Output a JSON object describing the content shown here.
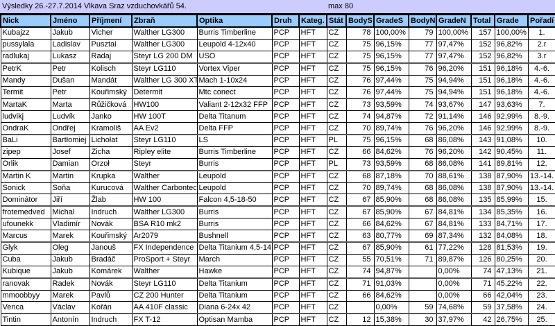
{
  "sheet": {
    "title": "Výsledky 26.-27.7.2014 Vlkava Sraz vzduchovkářů 54.",
    "max_note": "max 80",
    "header_color": "#99ccff",
    "title_color": "#ccccff",
    "columns": [
      "Nick",
      "Jméno",
      "Příjmení",
      "Zbraň",
      "Optika",
      "Druh",
      "Kateg.",
      "Stát",
      "BodyS",
      "GradeS",
      "BodyN",
      "GradeN",
      "Total",
      "Grade",
      "Pořadí"
    ],
    "rows": [
      [
        "Kubajzz",
        "Jakub",
        "Vicher",
        "Walther LG300",
        "Burris Timberline",
        "PCP",
        "HFT",
        "CZ",
        "78",
        "100,00%",
        "79",
        "100,00%",
        "157",
        "100,00%",
        "1."
      ],
      [
        "pussylala",
        "Ladislav",
        "Pusztai",
        "Walther LG300",
        "Leupold 4-12x40",
        "PCP",
        "HFT",
        "CZ",
        "75",
        "96,15%",
        "77",
        "97,47%",
        "152",
        "96,82%",
        "2.r"
      ],
      [
        "radlukaj",
        "Lukasz",
        "Radaj",
        "Steyr LG 200 DM",
        "USO",
        "PCP",
        "HFT",
        "CZ",
        "75",
        "96,15%",
        "77",
        "97,47%",
        "152",
        "96,82%",
        "3.r"
      ],
      [
        "PetrK",
        "Petr",
        "Kolisch",
        "Steyr LG110",
        "Vortex Viper",
        "PCP",
        "HFT",
        "CZ",
        "75",
        "96,15%",
        "76",
        "96,20%",
        "151",
        "96,18%",
        "4.-6."
      ],
      [
        "Mandy",
        "Dušan",
        "Mandát",
        "Walther LG 300 XT",
        "Mach 1-10x24",
        "PCP",
        "HFT",
        "CZ",
        "76",
        "97,44%",
        "75",
        "94,94%",
        "151",
        "96,18%",
        "4.-6."
      ],
      [
        "Termit",
        "Petr",
        "Kouřimský",
        "Determit",
        "Mtc conect",
        "PCP",
        "HFT",
        "CZ",
        "76",
        "97,44%",
        "75",
        "94,94%",
        "151",
        "96,18%",
        "4.-6."
      ],
      [
        "MartaK",
        "Marta",
        "Růžičková",
        "HW100",
        "Valiant 2-12x32 FFP",
        "PCP",
        "HFT",
        "CZ",
        "73",
        "93,59%",
        "74",
        "93,67%",
        "147",
        "93,63%",
        "7."
      ],
      [
        "ludvikj",
        "Ludvík",
        "Janko",
        "HW 100T",
        "Delta Titanum",
        "PCP",
        "HFT",
        "CZ",
        "74",
        "94,87%",
        "72",
        "91,14%",
        "146",
        "92,99%",
        "8.-9."
      ],
      [
        "OndraK",
        "Ondřej",
        "Kramoliš",
        "AA Ev2",
        "Delta FFP",
        "PCP",
        "HFT",
        "CZ",
        "70",
        "89,74%",
        "76",
        "96,20%",
        "146",
        "92,99%",
        "8.-9."
      ],
      [
        "BaLi",
        "Bartłomiej",
        "Lichołat",
        "Steyr LG110",
        "LS",
        "PCP",
        "HFT",
        "PL",
        "75",
        "96,15%",
        "68",
        "86,08%",
        "143",
        "91,08%",
        "10."
      ],
      [
        "zipep",
        "Josef",
        "Zicha",
        "Ripley elite",
        "Burris Timberline",
        "PCP",
        "HFT",
        "CZ",
        "66",
        "84,62%",
        "76",
        "96,20%",
        "142",
        "90,45%",
        "11."
      ],
      [
        "Orlik",
        "Damian",
        "Orzoł",
        "Steyr",
        "Burris",
        "PCP",
        "HFT",
        "PL",
        "73",
        "93,59%",
        "68",
        "86,08%",
        "141",
        "89,81%",
        "12."
      ],
      [
        "Martin K",
        "Martin",
        "Krupka",
        "Walther",
        "Leupold",
        "PCP",
        "HFT",
        "CZ",
        "68",
        "87,18%",
        "70",
        "88,61%",
        "138",
        "87,90%",
        "13.-14."
      ],
      [
        "Sonick",
        "Soňa",
        "Kurucová",
        "Walther Carbontec",
        "Leupold",
        "PCP",
        "HFT",
        "CZ",
        "70",
        "89,74%",
        "68",
        "86,08%",
        "138",
        "87,90%",
        "13.-14."
      ],
      [
        "Dominátor",
        "Jiří",
        "Žlab",
        "HW 100",
        "Falcon 4,5-18-50",
        "PCP",
        "HFT",
        "CZ",
        "67",
        "85,90%",
        "68",
        "86,08%",
        "135",
        "85,99%",
        "15."
      ],
      [
        "frotemedved",
        "Michal",
        "Indruch",
        "Walther LG300",
        "Burris",
        "PCP",
        "HFT",
        "CZ",
        "67",
        "85,90%",
        "67",
        "84,81%",
        "134",
        "85,35%",
        "16."
      ],
      [
        "ufounekk",
        "Vladimír",
        "Novák",
        "BSA R10 mk2",
        "Burris",
        "PCP",
        "HFT",
        "CZ",
        "66",
        "84,62%",
        "67",
        "84,81%",
        "133",
        "84,71%",
        "17."
      ],
      [
        "Marcus",
        "Marek",
        "Kouřimský",
        "Ar2079",
        "Bushnell",
        "PCP",
        "HFT",
        "CZ",
        "63",
        "80,77%",
        "69",
        "87,34%",
        "132",
        "84,08%",
        "18."
      ],
      [
        "Glyk",
        "Oleg",
        "Janouš",
        "FX Independence",
        "Delta Titanium 4,5-14",
        "PCP",
        "HFT",
        "CZ",
        "67",
        "85,90%",
        "61",
        "77,22%",
        "128",
        "81,53%",
        "19."
      ],
      [
        "Cuba",
        "Jakub",
        "Bradáč",
        "ProSport + Steyr",
        "March",
        "PCP",
        "HFT",
        "CZ",
        "55",
        "70,51%",
        "71",
        "89,87%",
        "126",
        "80,25%",
        "20."
      ],
      [
        "Kubique",
        "Jakub",
        "Komárek",
        "Walther",
        "Hawke",
        "PCP",
        "HFT",
        "CZ",
        "74",
        "94,87%",
        "",
        "0,00%",
        "74",
        "47,13%",
        "21."
      ],
      [
        "ranovak",
        "Radek",
        "Novák",
        "Steyr LG110",
        "Delta Titanium",
        "PCP",
        "HFT",
        "CZ",
        "71",
        "91,03%",
        "",
        "0,00%",
        "71",
        "45,22%",
        "22."
      ],
      [
        "mmoobbyy",
        "Marek",
        "Pavlů",
        "CZ 200 Hunter",
        "Delta Titanium",
        "PCP",
        "HFT",
        "CZ",
        "66",
        "84,62%",
        "",
        "0,00%",
        "66",
        "42,04%",
        "23."
      ],
      [
        "Venca",
        "Václav",
        "Kořán",
        "AA 410F classic",
        "Diana 6-24x 42",
        "PCP",
        "HFT",
        "CZ",
        "",
        "0,00%",
        "59",
        "74,68%",
        "59",
        "37,58%",
        "24."
      ],
      [
        "Tintin",
        "Antonín",
        "Indruch",
        "FX T-12",
        "Optisan Mamba",
        "PCP",
        "HFT",
        "CZ",
        "12",
        "15,38%",
        "30",
        "37,97%",
        "42",
        "26,75%",
        "25."
      ]
    ]
  }
}
